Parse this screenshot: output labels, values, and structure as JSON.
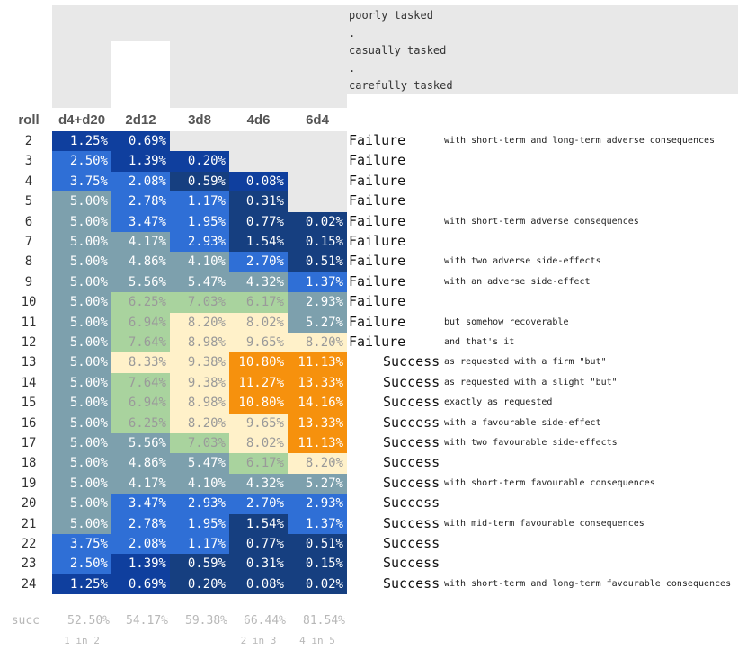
{
  "tiers": [
    {
      "label": "poorly tasked"
    },
    {
      "label": "."
    },
    {
      "label": "casually tasked"
    },
    {
      "label": "."
    },
    {
      "label": "carefully tasked"
    }
  ],
  "roll_header": "roll",
  "succ_label": "succ",
  "colors": {
    "deep_blue": "#0f3f9e",
    "blue": "#2f6fd6",
    "mid_blue": "#3f7ee0",
    "navy": "#163f80",
    "slate": "#7da0ad",
    "green": "#a9d39e",
    "cream": "#fff1c9",
    "orange": "#f6910d",
    "grey": "#e8e8e8"
  },
  "chart_data": {
    "type": "table",
    "columns": [
      "d4+d20",
      "2d12",
      "3d8",
      "4d6",
      "6d4"
    ],
    "rolls": [
      2,
      3,
      4,
      5,
      6,
      7,
      8,
      9,
      10,
      11,
      12,
      13,
      14,
      15,
      16,
      17,
      18,
      19,
      20,
      21,
      22,
      23,
      24
    ],
    "values": [
      [
        "1.25%",
        "0.69%",
        "",
        "",
        ""
      ],
      [
        "2.50%",
        "1.39%",
        "0.20%",
        "",
        ""
      ],
      [
        "3.75%",
        "2.08%",
        "0.59%",
        "0.08%",
        ""
      ],
      [
        "5.00%",
        "2.78%",
        "1.17%",
        "0.31%",
        ""
      ],
      [
        "5.00%",
        "3.47%",
        "1.95%",
        "0.77%",
        "0.02%"
      ],
      [
        "5.00%",
        "4.17%",
        "2.93%",
        "1.54%",
        "0.15%"
      ],
      [
        "5.00%",
        "4.86%",
        "4.10%",
        "2.70%",
        "0.51%"
      ],
      [
        "5.00%",
        "5.56%",
        "5.47%",
        "4.32%",
        "1.37%"
      ],
      [
        "5.00%",
        "6.25%",
        "7.03%",
        "6.17%",
        "2.93%"
      ],
      [
        "5.00%",
        "6.94%",
        "8.20%",
        "8.02%",
        "5.27%"
      ],
      [
        "5.00%",
        "7.64%",
        "8.98%",
        "9.65%",
        "8.20%"
      ],
      [
        "5.00%",
        "8.33%",
        "9.38%",
        "10.80%",
        "11.13%"
      ],
      [
        "5.00%",
        "7.64%",
        "9.38%",
        "11.27%",
        "13.33%"
      ],
      [
        "5.00%",
        "6.94%",
        "8.98%",
        "10.80%",
        "14.16%"
      ],
      [
        "5.00%",
        "6.25%",
        "8.20%",
        "9.65%",
        "13.33%"
      ],
      [
        "5.00%",
        "5.56%",
        "7.03%",
        "8.02%",
        "11.13%"
      ],
      [
        "5.00%",
        "4.86%",
        "5.47%",
        "6.17%",
        "8.20%"
      ],
      [
        "5.00%",
        "4.17%",
        "4.10%",
        "4.32%",
        "5.27%"
      ],
      [
        "5.00%",
        "3.47%",
        "2.93%",
        "2.70%",
        "2.93%"
      ],
      [
        "5.00%",
        "2.78%",
        "1.95%",
        "1.54%",
        "1.37%"
      ],
      [
        "3.75%",
        "2.08%",
        "1.17%",
        "0.77%",
        "0.51%"
      ],
      [
        "2.50%",
        "1.39%",
        "0.59%",
        "0.31%",
        "0.15%"
      ],
      [
        "1.25%",
        "0.69%",
        "0.20%",
        "0.08%",
        "0.02%"
      ]
    ],
    "outcomes": [
      {
        "result": "Failure",
        "note": "with short-term and long-term adverse consequences"
      },
      {
        "result": "Failure",
        "note": ""
      },
      {
        "result": "Failure",
        "note": ""
      },
      {
        "result": "Failure",
        "note": ""
      },
      {
        "result": "Failure",
        "note": "with short-term adverse consequences"
      },
      {
        "result": "Failure",
        "note": ""
      },
      {
        "result": "Failure",
        "note": "with two adverse side-effects"
      },
      {
        "result": "Failure",
        "note": "with an adverse side-effect"
      },
      {
        "result": "Failure",
        "note": ""
      },
      {
        "result": "Failure",
        "note": "but somehow recoverable"
      },
      {
        "result": "Failure",
        "note": "and that's it"
      },
      {
        "result": "Success",
        "note": "as requested with a firm \"but\""
      },
      {
        "result": "Success",
        "note": "as requested with a slight \"but\""
      },
      {
        "result": "Success",
        "note": "exactly as requested"
      },
      {
        "result": "Success",
        "note": "with a favourable side-effect"
      },
      {
        "result": "Success",
        "note": "with two favourable side-effects"
      },
      {
        "result": "Success",
        "note": ""
      },
      {
        "result": "Success",
        "note": "with short-term favourable consequences"
      },
      {
        "result": "Success",
        "note": ""
      },
      {
        "result": "Success",
        "note": "with mid-term favourable consequences"
      },
      {
        "result": "Success",
        "note": ""
      },
      {
        "result": "Success",
        "note": ""
      },
      {
        "result": "Success",
        "note": "with short-term and long-term favourable consequences"
      }
    ],
    "success": [
      "52.50%",
      "54.17%",
      "59.38%",
      "66.44%",
      "81.54%"
    ],
    "odds": [
      "1 in 2",
      "",
      "",
      "2 in 3",
      "4 in 5"
    ],
    "cell_colors": [
      [
        "deep_blue",
        "deep_blue",
        "",
        "",
        ""
      ],
      [
        "blue",
        "deep_blue",
        "deep_blue",
        "",
        ""
      ],
      [
        "blue",
        "blue",
        "navy",
        "deep_blue",
        ""
      ],
      [
        "slate",
        "blue",
        "blue",
        "navy",
        ""
      ],
      [
        "slate",
        "blue",
        "blue",
        "navy",
        "navy"
      ],
      [
        "slate",
        "slate",
        "blue",
        "navy",
        "navy"
      ],
      [
        "slate",
        "slate",
        "slate",
        "blue",
        "navy"
      ],
      [
        "slate",
        "slate",
        "slate",
        "slate",
        "blue"
      ],
      [
        "slate",
        "green",
        "green",
        "green",
        "slate"
      ],
      [
        "slate",
        "green",
        "cream",
        "cream",
        "slate"
      ],
      [
        "slate",
        "green",
        "cream",
        "cream",
        "cream"
      ],
      [
        "slate",
        "cream",
        "cream",
        "orange",
        "orange"
      ],
      [
        "slate",
        "green",
        "cream",
        "orange",
        "orange"
      ],
      [
        "slate",
        "green",
        "cream",
        "orange",
        "orange"
      ],
      [
        "slate",
        "green",
        "cream",
        "cream",
        "orange"
      ],
      [
        "slate",
        "slate",
        "green",
        "cream",
        "orange"
      ],
      [
        "slate",
        "slate",
        "slate",
        "green",
        "cream"
      ],
      [
        "slate",
        "slate",
        "slate",
        "slate",
        "slate"
      ],
      [
        "slate",
        "blue",
        "blue",
        "blue",
        "blue"
      ],
      [
        "slate",
        "blue",
        "blue",
        "navy",
        "blue"
      ],
      [
        "blue",
        "blue",
        "blue",
        "navy",
        "navy"
      ],
      [
        "blue",
        "deep_blue",
        "navy",
        "navy",
        "navy"
      ],
      [
        "deep_blue",
        "deep_blue",
        "navy",
        "navy",
        "navy"
      ]
    ],
    "xlabel": "",
    "ylabel": ""
  }
}
